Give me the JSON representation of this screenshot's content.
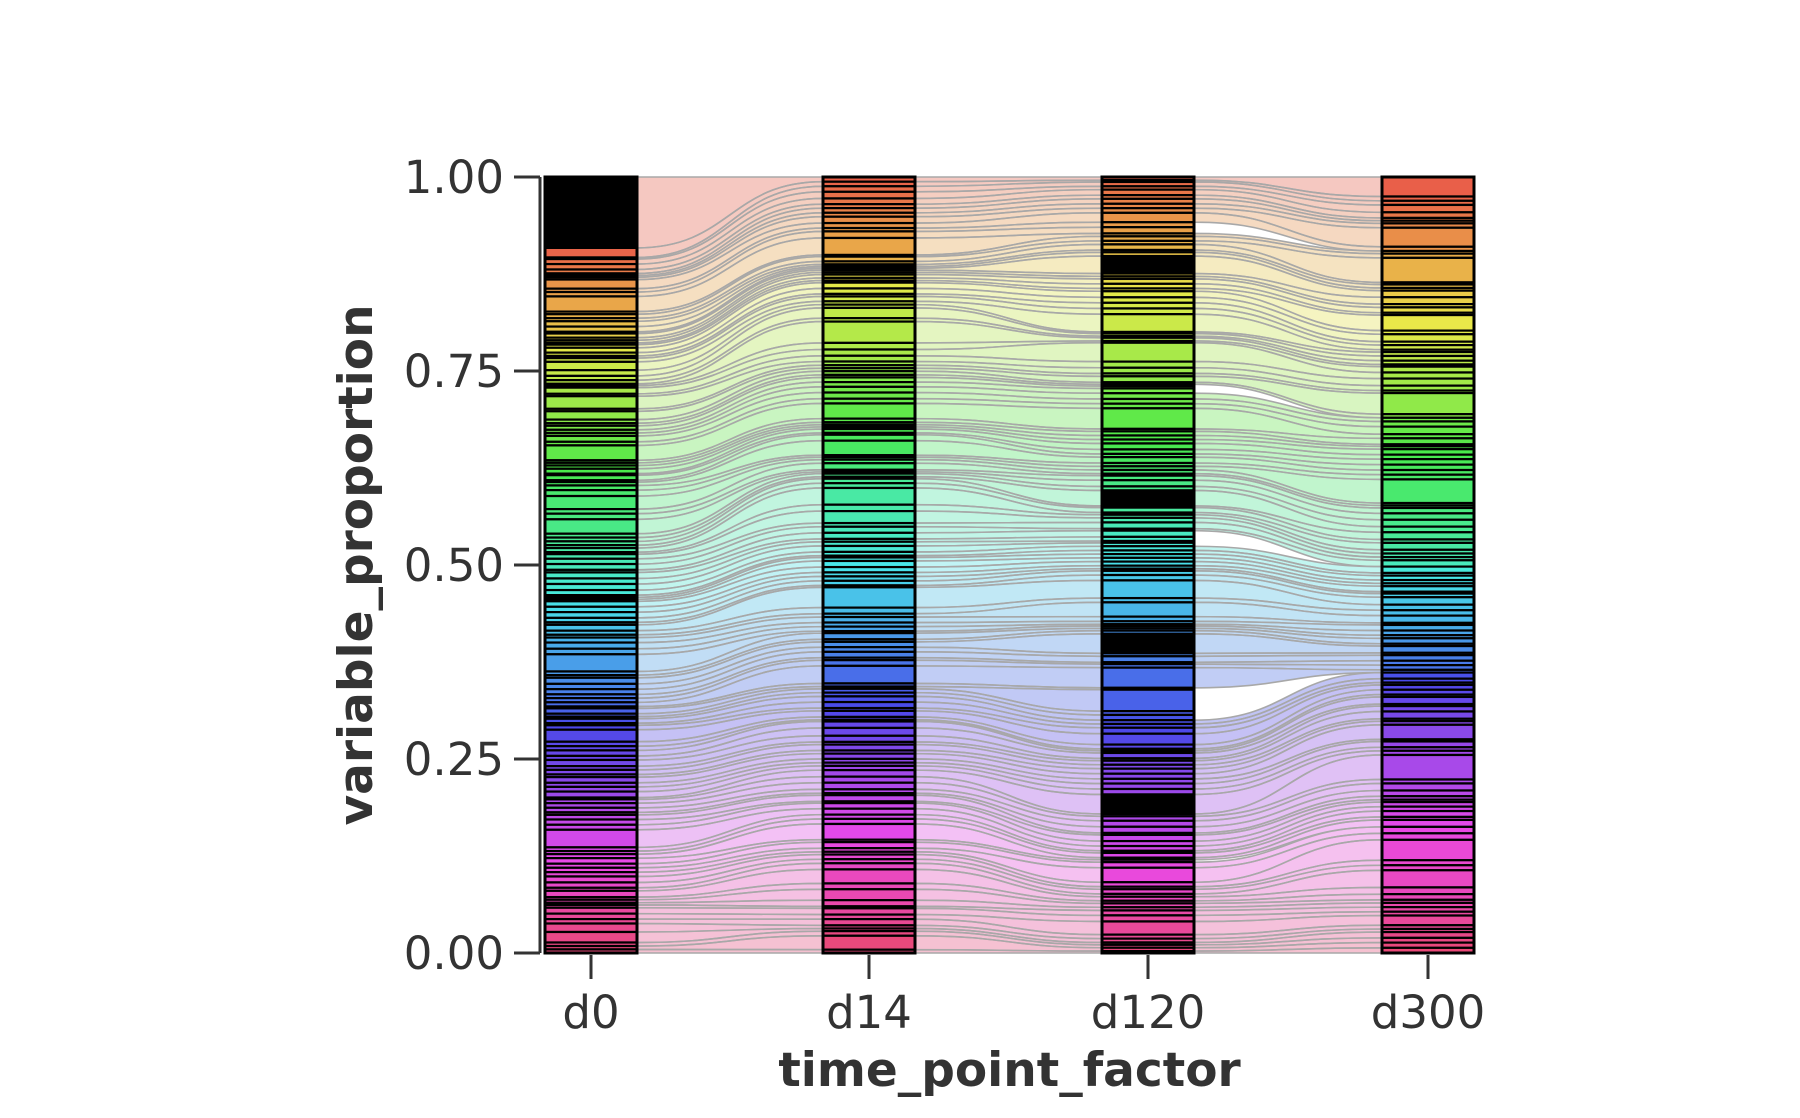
{
  "chart_data": {
    "type": "alluvial",
    "xlabel": "time_point_factor",
    "ylabel": "variable_proportion",
    "categories": [
      "d0",
      "d14",
      "d120",
      "d300"
    ],
    "y_ticks": [
      "0.00",
      "0.25",
      "0.50",
      "0.75",
      "1.00"
    ],
    "ylim": [
      0,
      1
    ],
    "grid": false,
    "legend": "none",
    "stratum_outline_color": "#000000",
    "flow_outline_color": "#a8a8a8",
    "flow_opacity": 0.5,
    "clone_color_scale": "hue rainbow (red → orange → yellow → green → cyan → blue → purple → pink), ordered top to bottom",
    "annotations": {
      "d0_top_block": "large black stratum spanning roughly 0.92–1.00",
      "d120_black_blocks": "black strata near 0.88–0.90, 0.58–0.60, 0.38–0.41 and 0.23–0.25"
    }
  }
}
